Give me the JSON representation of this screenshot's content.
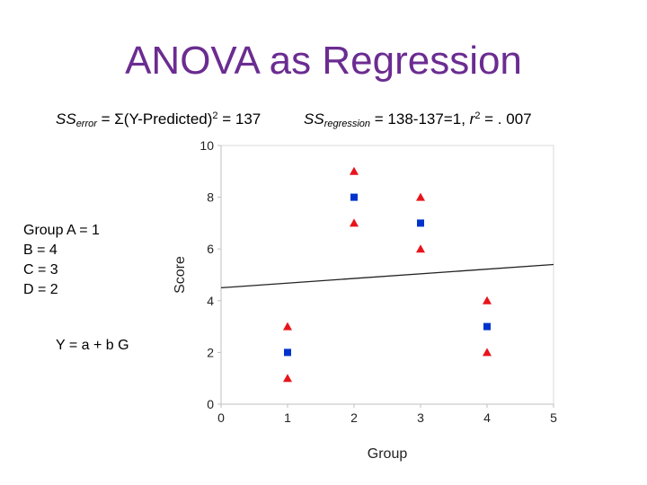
{
  "title": "ANOVA as Regression",
  "formula_left": {
    "prefix": "SS",
    "sub": "error",
    "mid": " = Σ(Y-Predicted)",
    "sup": "2",
    "suffix": " = 137"
  },
  "formula_right": {
    "prefix": "SS",
    "sub": "regression",
    "mid": " = 138-137=1, ",
    "r": "r",
    "sup": "2",
    "suffix": " = . 007"
  },
  "coding": [
    "Group A = 1",
    "B = 4",
    "C = 3",
    "D = 2"
  ],
  "model": "Y = a + b G",
  "chart_data": {
    "type": "scatter",
    "xlabel": "Group",
    "ylabel": "Score",
    "xlim": [
      0,
      5
    ],
    "ylim": [
      0,
      10
    ],
    "xticks": [
      0,
      1,
      2,
      3,
      4,
      5
    ],
    "yticks": [
      0,
      2,
      4,
      6,
      8,
      10
    ],
    "grid": false,
    "series": [
      {
        "marker": "triangle",
        "color": "#e8141b",
        "points": [
          [
            1,
            3
          ],
          [
            1,
            1
          ],
          [
            2,
            9
          ],
          [
            2,
            7
          ],
          [
            3,
            8
          ],
          [
            3,
            6
          ],
          [
            4,
            4
          ],
          [
            4,
            2
          ]
        ]
      },
      {
        "marker": "square",
        "color": "#0033cc",
        "points": [
          [
            1,
            2
          ],
          [
            2,
            8
          ],
          [
            3,
            7
          ],
          [
            4,
            3
          ]
        ]
      }
    ],
    "regression_line": {
      "x": [
        0,
        5
      ],
      "y": [
        4.5,
        5.4
      ],
      "color": "#222222"
    }
  }
}
